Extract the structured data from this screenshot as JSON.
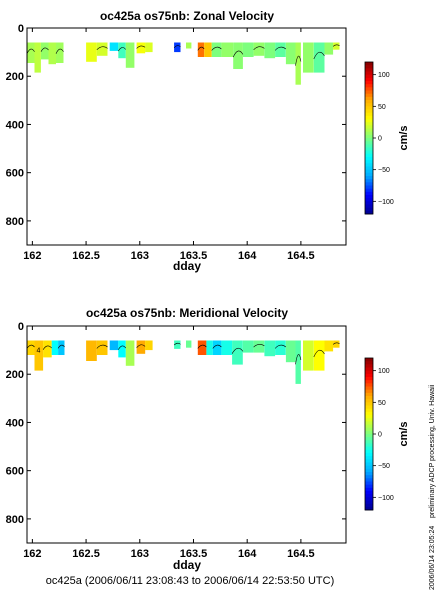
{
  "footer_text": "oc425a (2006/06/11 23:08:43 to 2006/06/14 22:53:50 UTC)",
  "side_note": "preliminary ADCP processing,  Univ. Hawaii",
  "side_timestamp": "2006/06/14 23:05:24",
  "colormap": [
    "#00008f",
    "#0000ff",
    "#00aaff",
    "#00ffff",
    "#7dff7d",
    "#ffff00",
    "#ffaa00",
    "#ff0000",
    "#800000"
  ],
  "chart_data": [
    {
      "type": "heatmap",
      "title": "oc425a os75nb: Zonal Velocity",
      "xlabel": "dday",
      "ylabel": "",
      "xlim": [
        161.95,
        164.92
      ],
      "ylim": [
        900,
        0
      ],
      "x_ticks": [
        162,
        162.5,
        163,
        163.5,
        164,
        164.5
      ],
      "x_tick_labels": [
        "162",
        "162.5",
        "163",
        "163.5",
        "164",
        "164.5"
      ],
      "y_ticks": [
        0,
        200,
        400,
        600,
        800
      ],
      "y_tick_labels": [
        "0",
        "200",
        "400",
        "600",
        "800"
      ],
      "colorbar": {
        "label": "cm/s",
        "ticks": [
          100,
          50,
          0,
          -50,
          -100
        ],
        "tick_labels": [
          "100",
          "50",
          "0",
          "−50",
          "−100"
        ],
        "range": [
          -120,
          120
        ]
      },
      "cells": [
        {
          "x0": 161.95,
          "x1": 162.02,
          "y0": 60,
          "y1": 145,
          "v": 10
        },
        {
          "x0": 162.02,
          "x1": 162.08,
          "y0": 60,
          "y1": 185,
          "v": 15
        },
        {
          "x0": 162.08,
          "x1": 162.15,
          "y0": 60,
          "y1": 130,
          "v": 5
        },
        {
          "x0": 162.15,
          "x1": 162.22,
          "y0": 60,
          "y1": 150,
          "v": 12
        },
        {
          "x0": 162.22,
          "x1": 162.29,
          "y0": 60,
          "y1": 145,
          "v": 8
        },
        {
          "x0": 162.5,
          "x1": 162.6,
          "y0": 60,
          "y1": 140,
          "v": 25
        },
        {
          "x0": 162.6,
          "x1": 162.7,
          "y0": 60,
          "y1": 115,
          "v": 20
        },
        {
          "x0": 162.72,
          "x1": 162.8,
          "y0": 60,
          "y1": 95,
          "v": -40
        },
        {
          "x0": 162.8,
          "x1": 162.87,
          "y0": 60,
          "y1": 125,
          "v": -15
        },
        {
          "x0": 162.87,
          "x1": 162.95,
          "y0": 60,
          "y1": 165,
          "v": 5
        },
        {
          "x0": 162.97,
          "x1": 163.05,
          "y0": 60,
          "y1": 105,
          "v": 28
        },
        {
          "x0": 163.05,
          "x1": 163.12,
          "y0": 60,
          "y1": 100,
          "v": 22
        },
        {
          "x0": 163.32,
          "x1": 163.38,
          "y0": 60,
          "y1": 100,
          "v": -80
        },
        {
          "x0": 163.43,
          "x1": 163.48,
          "y0": 60,
          "y1": 85,
          "v": 10
        },
        {
          "x0": 163.54,
          "x1": 163.6,
          "y0": 60,
          "y1": 120,
          "v": 70
        },
        {
          "x0": 163.6,
          "x1": 163.67,
          "y0": 60,
          "y1": 120,
          "v": 50
        },
        {
          "x0": 163.67,
          "x1": 163.76,
          "y0": 60,
          "y1": 120,
          "v": 0
        },
        {
          "x0": 163.76,
          "x1": 163.87,
          "y0": 60,
          "y1": 120,
          "v": 5
        },
        {
          "x0": 163.87,
          "x1": 163.96,
          "y0": 60,
          "y1": 170,
          "v": 3
        },
        {
          "x0": 163.96,
          "x1": 164.06,
          "y0": 60,
          "y1": 120,
          "v": 0
        },
        {
          "x0": 164.06,
          "x1": 164.16,
          "y0": 60,
          "y1": 115,
          "v": 5
        },
        {
          "x0": 164.16,
          "x1": 164.26,
          "y0": 60,
          "y1": 125,
          "v": 0
        },
        {
          "x0": 164.26,
          "x1": 164.36,
          "y0": 60,
          "y1": 120,
          "v": -8
        },
        {
          "x0": 164.36,
          "x1": 164.45,
          "y0": 60,
          "y1": 150,
          "v": 3
        },
        {
          "x0": 164.45,
          "x1": 164.5,
          "y0": 60,
          "y1": 235,
          "v": 10
        },
        {
          "x0": 164.52,
          "x1": 164.62,
          "y0": 60,
          "y1": 185,
          "v": 5
        },
        {
          "x0": 164.62,
          "x1": 164.72,
          "y0": 60,
          "y1": 185,
          "v": -8
        },
        {
          "x0": 164.72,
          "x1": 164.8,
          "y0": 60,
          "y1": 110,
          "v": 5
        },
        {
          "x0": 164.8,
          "x1": 164.86,
          "y0": 60,
          "y1": 90,
          "v": 20
        }
      ]
    },
    {
      "type": "heatmap",
      "title": "oc425a os75nb: Meridional Velocity",
      "xlabel": "dday",
      "ylabel": "",
      "xlim": [
        161.95,
        164.92
      ],
      "ylim": [
        900,
        0
      ],
      "x_ticks": [
        162,
        162.5,
        163,
        163.5,
        164,
        164.5
      ],
      "x_tick_labels": [
        "162",
        "162.5",
        "163",
        "163.5",
        "164",
        "164.5"
      ],
      "y_ticks": [
        0,
        200,
        400,
        600,
        800
      ],
      "y_tick_labels": [
        "0",
        "200",
        "400",
        "600",
        "800"
      ],
      "colorbar": {
        "label": "cm/s",
        "ticks": [
          100,
          50,
          0,
          -50,
          -100
        ],
        "tick_labels": [
          "100",
          "50",
          "0",
          "−50",
          "−100"
        ],
        "range": [
          -120,
          120
        ]
      },
      "contour_label": "4",
      "cells": [
        {
          "x0": 161.95,
          "x1": 162.02,
          "y0": 60,
          "y1": 120,
          "v": 45
        },
        {
          "x0": 162.02,
          "x1": 162.1,
          "y0": 60,
          "y1": 185,
          "v": 50
        },
        {
          "x0": 162.1,
          "x1": 162.18,
          "y0": 60,
          "y1": 130,
          "v": 40
        },
        {
          "x0": 162.18,
          "x1": 162.24,
          "y0": 60,
          "y1": 120,
          "v": -30
        },
        {
          "x0": 162.24,
          "x1": 162.3,
          "y0": 60,
          "y1": 120,
          "v": -50
        },
        {
          "x0": 162.5,
          "x1": 162.6,
          "y0": 60,
          "y1": 145,
          "v": 55
        },
        {
          "x0": 162.6,
          "x1": 162.7,
          "y0": 60,
          "y1": 120,
          "v": 50
        },
        {
          "x0": 162.72,
          "x1": 162.8,
          "y0": 60,
          "y1": 100,
          "v": -55
        },
        {
          "x0": 162.8,
          "x1": 162.87,
          "y0": 60,
          "y1": 130,
          "v": -30
        },
        {
          "x0": 162.87,
          "x1": 162.95,
          "y0": 60,
          "y1": 165,
          "v": 10
        },
        {
          "x0": 162.97,
          "x1": 163.05,
          "y0": 60,
          "y1": 115,
          "v": 60
        },
        {
          "x0": 163.05,
          "x1": 163.12,
          "y0": 60,
          "y1": 100,
          "v": 45
        },
        {
          "x0": 163.32,
          "x1": 163.38,
          "y0": 60,
          "y1": 95,
          "v": -15
        },
        {
          "x0": 163.43,
          "x1": 163.48,
          "y0": 60,
          "y1": 90,
          "v": -5
        },
        {
          "x0": 163.54,
          "x1": 163.62,
          "y0": 60,
          "y1": 120,
          "v": 75
        },
        {
          "x0": 163.62,
          "x1": 163.68,
          "y0": 60,
          "y1": 120,
          "v": -25
        },
        {
          "x0": 163.68,
          "x1": 163.76,
          "y0": 60,
          "y1": 120,
          "v": -45
        },
        {
          "x0": 163.76,
          "x1": 163.86,
          "y0": 60,
          "y1": 120,
          "v": -25
        },
        {
          "x0": 163.86,
          "x1": 163.96,
          "y0": 60,
          "y1": 160,
          "v": -15
        },
        {
          "x0": 163.96,
          "x1": 164.06,
          "y0": 60,
          "y1": 110,
          "v": -10
        },
        {
          "x0": 164.06,
          "x1": 164.16,
          "y0": 60,
          "y1": 110,
          "v": -5
        },
        {
          "x0": 164.16,
          "x1": 164.26,
          "y0": 60,
          "y1": 125,
          "v": -15
        },
        {
          "x0": 164.26,
          "x1": 164.36,
          "y0": 60,
          "y1": 120,
          "v": -20
        },
        {
          "x0": 164.36,
          "x1": 164.45,
          "y0": 60,
          "y1": 150,
          "v": -5
        },
        {
          "x0": 164.45,
          "x1": 164.5,
          "y0": 60,
          "y1": 240,
          "v": -10
        },
        {
          "x0": 164.52,
          "x1": 164.62,
          "y0": 60,
          "y1": 185,
          "v": 20
        },
        {
          "x0": 164.62,
          "x1": 164.72,
          "y0": 60,
          "y1": 185,
          "v": 30
        },
        {
          "x0": 164.72,
          "x1": 164.8,
          "y0": 60,
          "y1": 105,
          "v": 40
        },
        {
          "x0": 164.8,
          "x1": 164.86,
          "y0": 60,
          "y1": 90,
          "v": 45
        }
      ]
    }
  ]
}
